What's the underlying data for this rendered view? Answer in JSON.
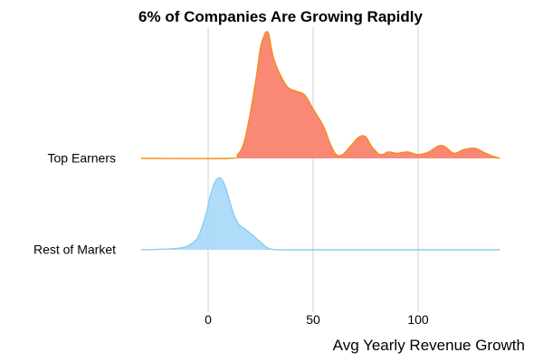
{
  "chart_data": {
    "type": "ridgeline-density",
    "title": "6% of Companies Are Growing Rapidly",
    "xlabel": "Avg Yearly Revenue Growth",
    "ylabel": "",
    "xlim": [
      -35,
      150
    ],
    "x_ticks": [
      0,
      50,
      100
    ],
    "x_tick_labels": [
      "0",
      "50",
      "100"
    ],
    "grid": "vertical",
    "series": [
      {
        "name": "Top Earners",
        "fill": "#fa7e6a",
        "line": "#f08f13",
        "x": [
          -32,
          10,
          14,
          17,
          20,
          23,
          25,
          27,
          28,
          29,
          31,
          34,
          38,
          42,
          46,
          50,
          55,
          58,
          61,
          64,
          68,
          72,
          75,
          78,
          82,
          86,
          90,
          95,
          100,
          105,
          110,
          113,
          117,
          122,
          127,
          131,
          135,
          139
        ],
        "density": [
          0,
          0,
          0.03,
          0.12,
          0.35,
          0.65,
          0.88,
          0.98,
          1.0,
          0.97,
          0.8,
          0.67,
          0.56,
          0.53,
          0.5,
          0.39,
          0.25,
          0.12,
          0.03,
          0.03,
          0.1,
          0.17,
          0.17,
          0.09,
          0.03,
          0.05,
          0.04,
          0.05,
          0.03,
          0.05,
          0.1,
          0.09,
          0.04,
          0.07,
          0.08,
          0.05,
          0.02,
          0
        ]
      },
      {
        "name": "Rest of Market",
        "fill": "#a8d9f7",
        "line": "#8ccdf2",
        "x": [
          -32,
          -20,
          -12,
          -8,
          -5,
          -3,
          -1,
          1,
          3,
          5,
          7,
          9,
          11,
          13,
          15,
          18,
          21,
          25,
          28,
          30,
          33,
          40,
          60,
          100,
          139
        ],
        "density": [
          0,
          0.01,
          0.03,
          0.08,
          0.16,
          0.3,
          0.48,
          0.72,
          0.9,
          0.97,
          0.93,
          0.78,
          0.58,
          0.42,
          0.33,
          0.27,
          0.2,
          0.1,
          0.03,
          0.01,
          0,
          0,
          0,
          0,
          0
        ]
      }
    ]
  }
}
